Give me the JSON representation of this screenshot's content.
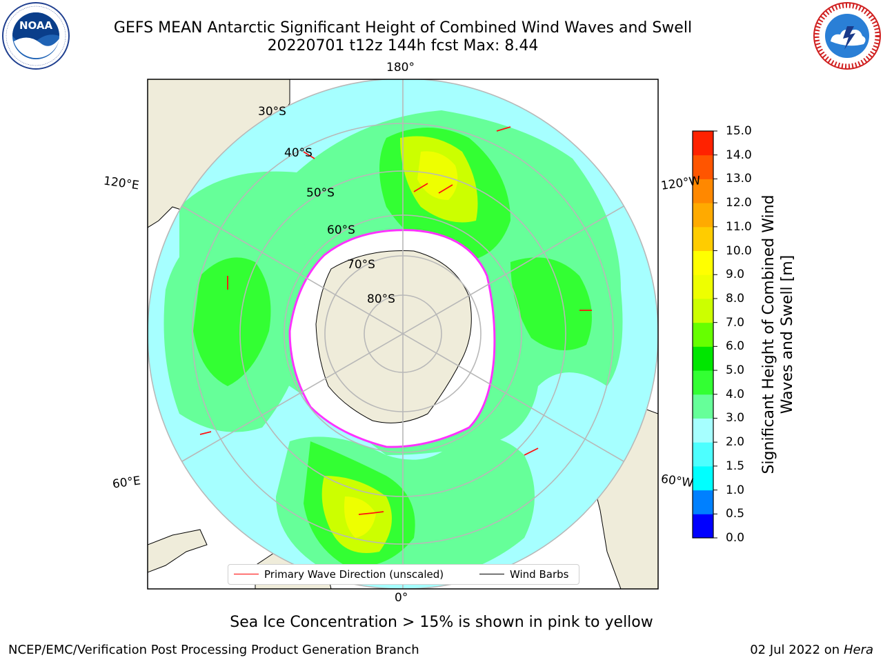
{
  "title": {
    "line1": "GEFS MEAN Antarctic Significant Height of Combined Wind Waves and Swell",
    "line2": "20220701 t12z 144h fcst   Max: 8.44"
  },
  "logos": {
    "left": "NOAA",
    "left_ring": "NATIONAL OCEANIC AND ATMOSPHERIC ADMINISTRATION · U.S. DEPARTMENT OF COMMERCE",
    "right_ring": "NATIONAL WEATHER SERVICE"
  },
  "map": {
    "projection": "south polar stereographic",
    "lon_labels": [
      "180°",
      "120°E",
      "120°W",
      "60°E",
      "60°W",
      "0°"
    ],
    "lat_labels": [
      "30°S",
      "40°S",
      "50°S",
      "60°S",
      "70°S",
      "80°S"
    ],
    "land_color": "#efecda",
    "ice_color": "#ffffff",
    "ice_edge_color": "#ff33ff"
  },
  "legend": {
    "primary_wave": "Primary Wave Direction (unscaled)",
    "wind_barbs": "Wind Barbs",
    "primary_wave_color": "#ff0000",
    "wind_barbs_color": "#000000"
  },
  "colorbar": {
    "label": "Significant Height of Combined Wind Waves and Swell [m]",
    "ticks": [
      "0.0",
      "0.5",
      "1.0",
      "1.5",
      "2.0",
      "3.0",
      "4.0",
      "5.0",
      "6.0",
      "7.0",
      "8.0",
      "9.0",
      "10.0",
      "11.0",
      "12.0",
      "13.0",
      "14.0",
      "15.0"
    ],
    "colors": [
      "#0000ff",
      "#0080ff",
      "#00ffff",
      "#4dffff",
      "#a6ffff",
      "#66ff99",
      "#33ff33",
      "#00e600",
      "#66ff00",
      "#ccff00",
      "#eeff00",
      "#ffff00",
      "#ffcc00",
      "#ffaa00",
      "#ff8800",
      "#ff5500",
      "#ff2200"
    ]
  },
  "footer": {
    "note": "Sea Ice Concentration > 15% is shown in pink to yellow",
    "credit": "NCEP/EMC/Verification Post Processing Product Generation Branch",
    "date_prefix": "02 Jul 2022 on ",
    "date_host": "Hera"
  }
}
